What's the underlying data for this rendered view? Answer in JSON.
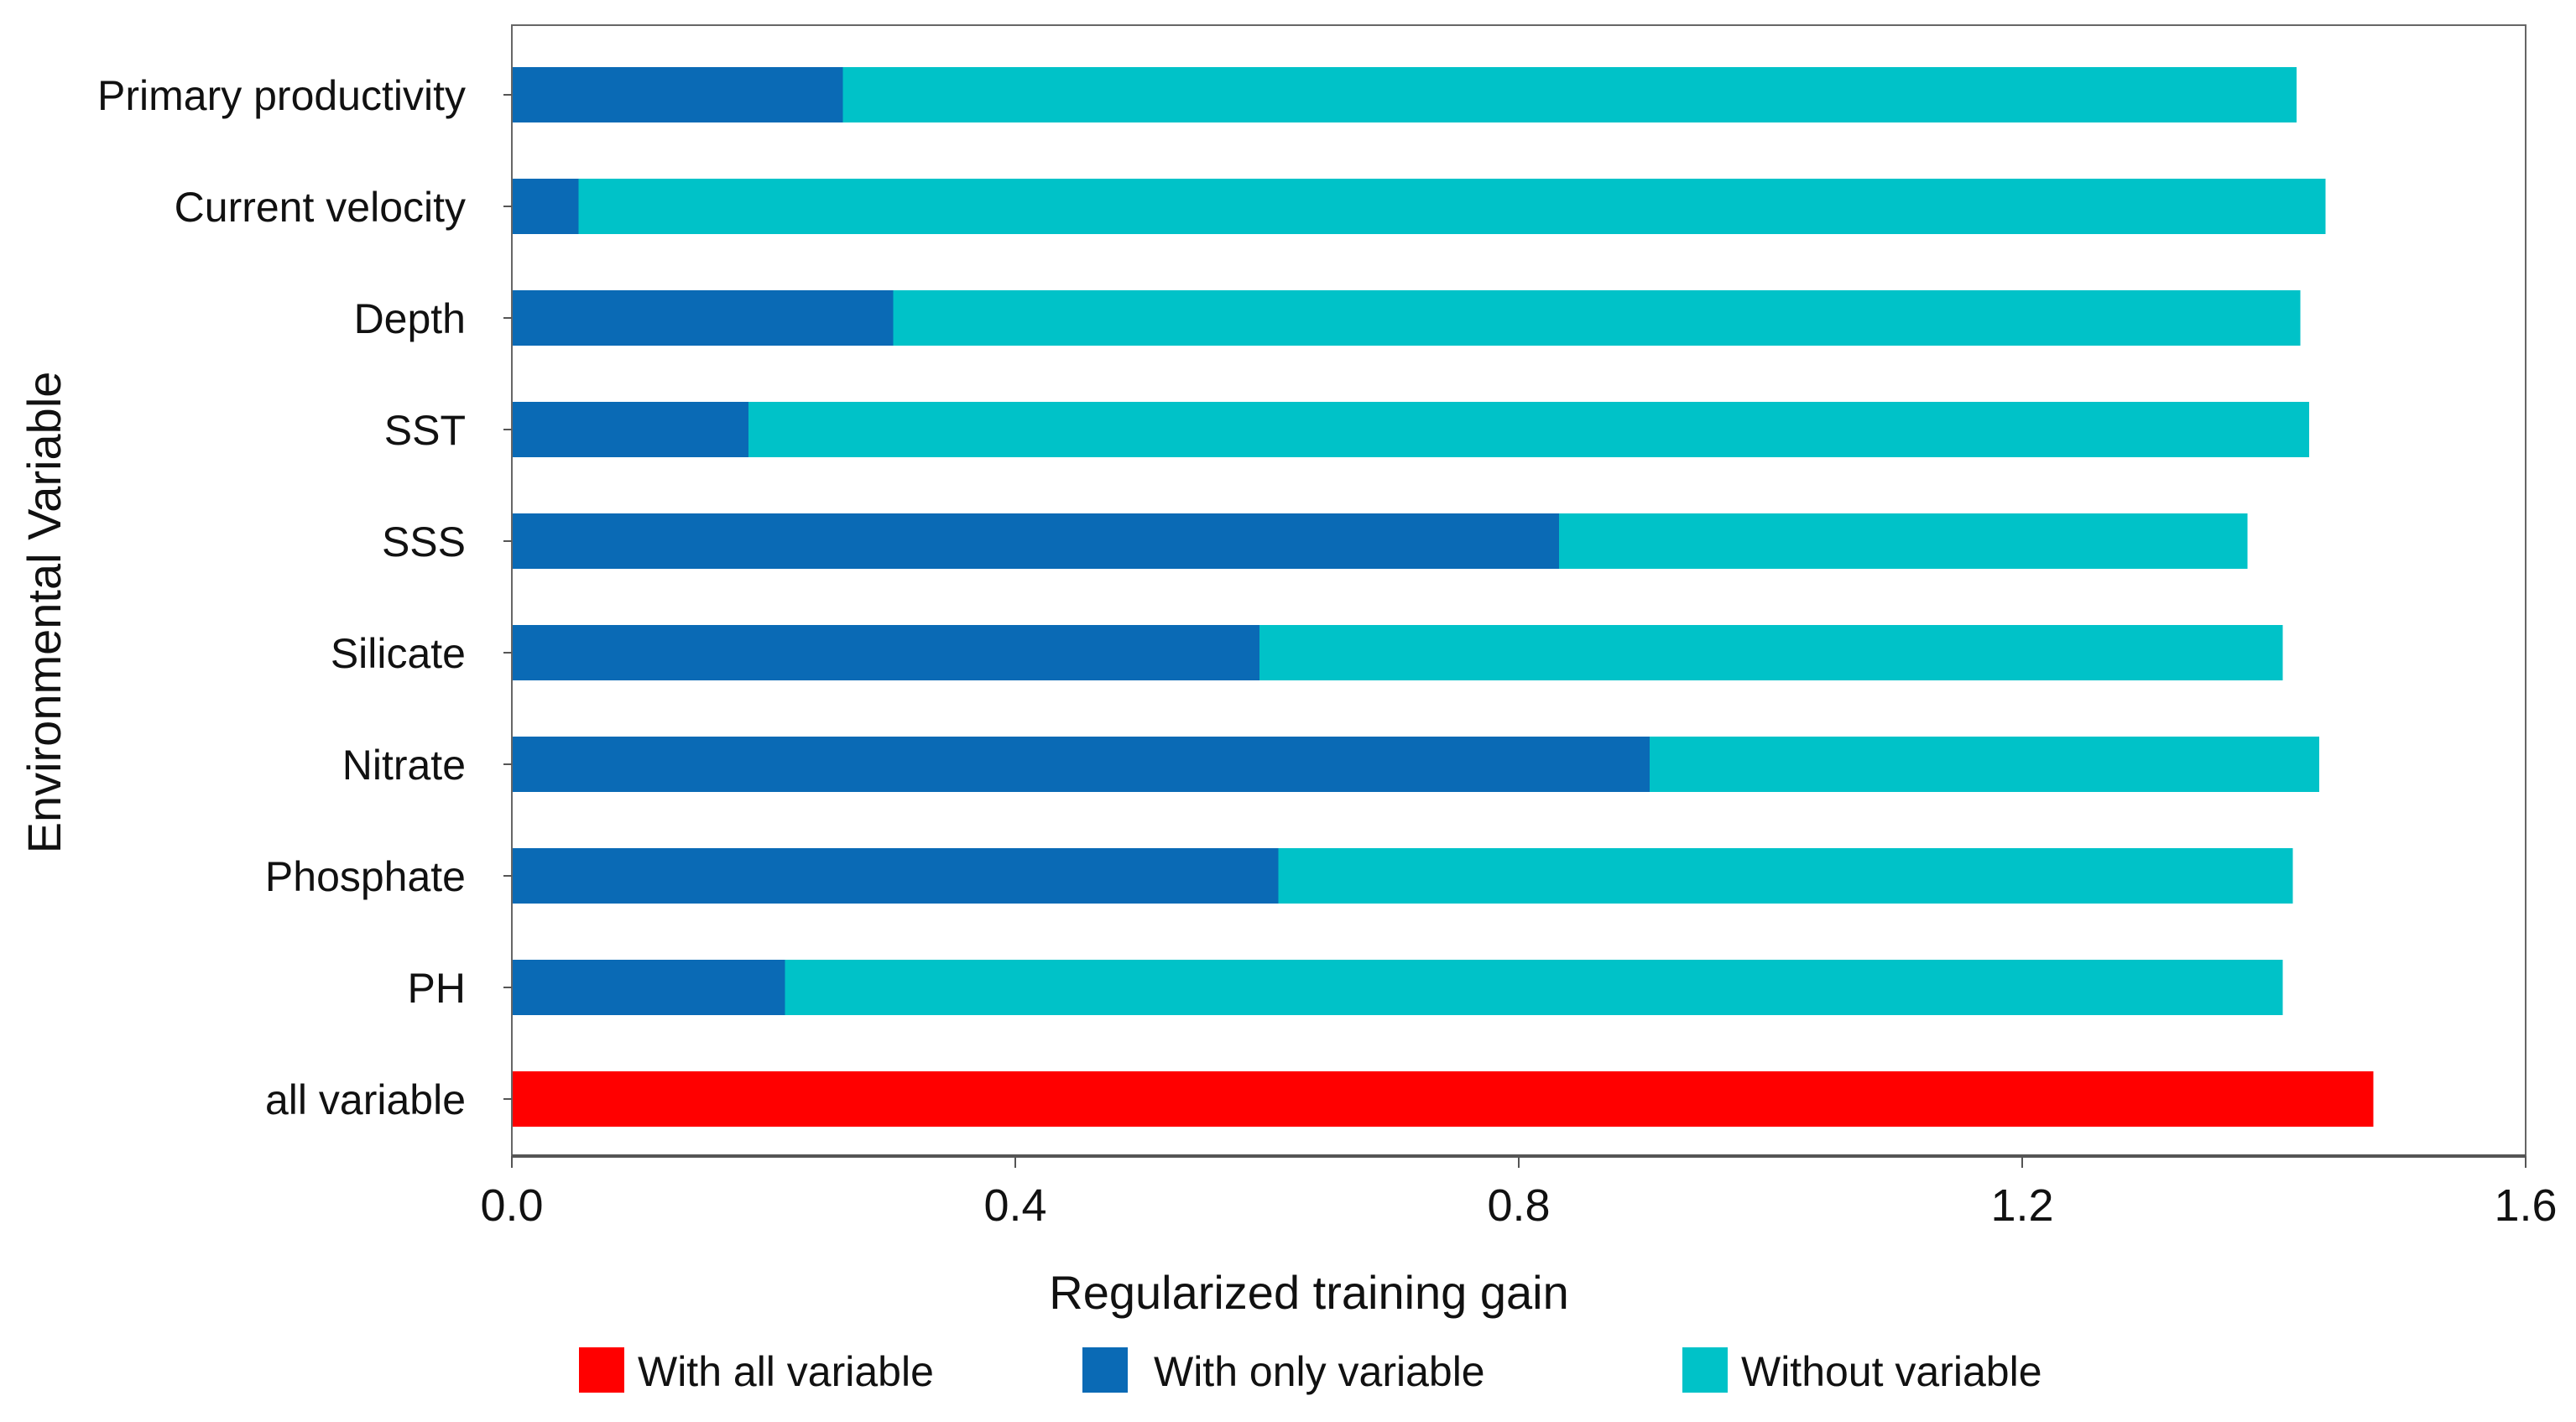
{
  "chart_data": {
    "type": "bar",
    "orientation": "horizontal",
    "title": "",
    "xlabel": "Regularized training gain",
    "ylabel": "Environmental Variable",
    "xlim": [
      0,
      1.6
    ],
    "xticks": [
      "0.0",
      "0.4",
      "0.8",
      "1.2",
      "1.6"
    ],
    "xtick_values": [
      0,
      0.4,
      0.8,
      1.2,
      1.6
    ],
    "grid": false,
    "legend_position": "bottom",
    "categories": [
      "Primary productivity",
      "Current velocity",
      "Depth",
      "SST",
      "SSS",
      "Silicate",
      "Nitrate",
      "Phosphate",
      "PH",
      "all variable"
    ],
    "series": [
      {
        "name": "With all variable",
        "color": "#ff0000",
        "values": [
          null,
          null,
          null,
          null,
          null,
          null,
          null,
          null,
          null,
          1.479
        ]
      },
      {
        "name": "With only variable",
        "color": "#0a6ab5",
        "values": [
          0.263,
          0.053,
          0.303,
          0.188,
          0.832,
          0.594,
          0.904,
          0.609,
          0.217,
          null
        ]
      },
      {
        "name": "Without variable",
        "color": "#00c2c8",
        "values": [
          1.418,
          1.441,
          1.421,
          1.428,
          1.379,
          1.407,
          1.436,
          1.415,
          1.407,
          null
        ]
      }
    ]
  }
}
